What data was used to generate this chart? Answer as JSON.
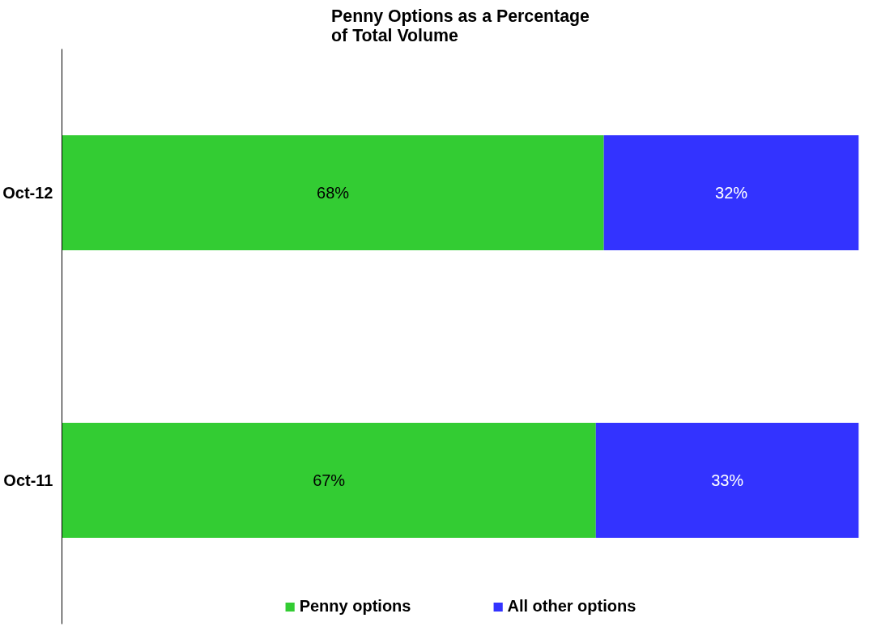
{
  "chart_data": {
    "type": "bar",
    "orientation": "horizontal",
    "stacked": true,
    "title": "Penny Options as a Percentage of Total Volume",
    "categories": [
      "Oct-12",
      "Oct-11"
    ],
    "series": [
      {
        "name": "Penny options",
        "color": "#33cc33",
        "values": [
          68,
          67
        ],
        "value_labels": [
          "68%",
          "67%"
        ]
      },
      {
        "name": "All other options",
        "color": "#3333ff",
        "values": [
          32,
          33
        ],
        "value_labels": [
          "32%",
          "33%"
        ]
      }
    ],
    "xlim": [
      0,
      100
    ],
    "tick_labels": "y",
    "legend": "bottom"
  }
}
